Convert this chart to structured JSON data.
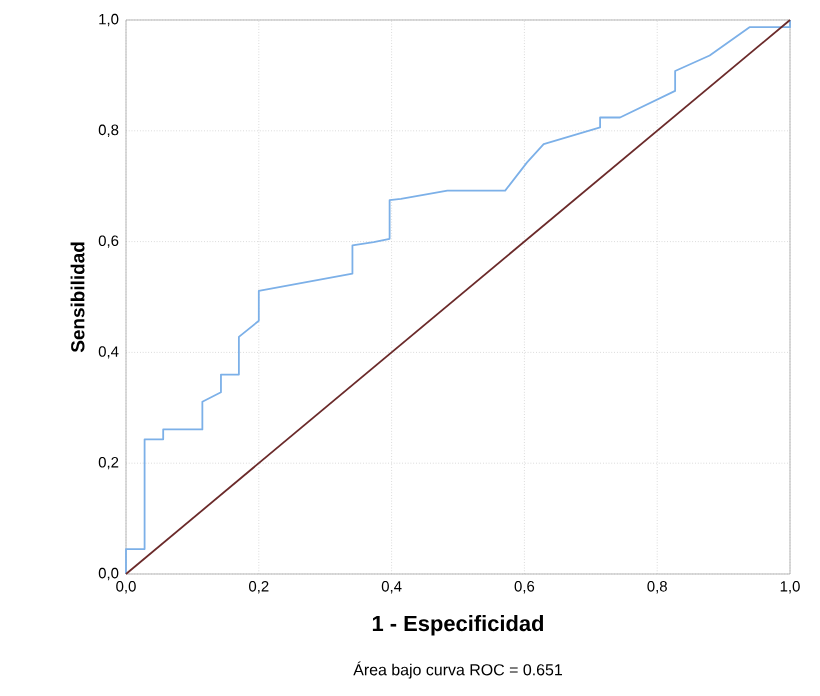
{
  "chart_data": {
    "type": "line",
    "xlabel": "1 - Especificidad",
    "ylabel": "Sensibilidad",
    "annotations": [
      "Área bajo curva ROC = 0.651"
    ],
    "xlim": [
      0,
      1
    ],
    "ylim": [
      0,
      1
    ],
    "xticks": [
      {
        "value": 0,
        "label": "0,0"
      },
      {
        "value": 0.2,
        "label": "0,2"
      },
      {
        "value": 0.4,
        "label": "0,4"
      },
      {
        "value": 0.6,
        "label": "0,6"
      },
      {
        "value": 0.8,
        "label": "0,8"
      },
      {
        "value": 1,
        "label": "1,0"
      }
    ],
    "yticks": [
      {
        "value": 0,
        "label": "0,0"
      },
      {
        "value": 0.2,
        "label": "0,2"
      },
      {
        "value": 0.4,
        "label": "0,4"
      },
      {
        "value": 0.6,
        "label": "0,6"
      },
      {
        "value": 0.8,
        "label": "0,8"
      },
      {
        "value": 1,
        "label": "1,0"
      }
    ],
    "grid": true,
    "series": [
      {
        "color": "#7cb0e8",
        "x": [
          0,
          0,
          0.028,
          0.028,
          0.056,
          0.056,
          0.115,
          0.115,
          0.143,
          0.143,
          0.17,
          0.17,
          0.2,
          0.2,
          0.341,
          0.341,
          0.373,
          0.397,
          0.397,
          0.414,
          0.484,
          0.571,
          0.604,
          0.629,
          0.714,
          0.714,
          0.744,
          0.827,
          0.827,
          0.879,
          0.939,
          1,
          1
        ],
        "values": [
          0,
          0.045,
          0.045,
          0.243,
          0.243,
          0.261,
          0.261,
          0.311,
          0.328,
          0.36,
          0.36,
          0.428,
          0.457,
          0.511,
          0.542,
          0.593,
          0.599,
          0.605,
          0.675,
          0.677,
          0.692,
          0.692,
          0.743,
          0.776,
          0.806,
          0.824,
          0.824,
          0.872,
          0.908,
          0.936,
          0.987,
          0.987,
          1
        ]
      },
      {
        "color": "#6b2a2a",
        "x": [
          0,
          1
        ],
        "values": [
          0,
          1
        ]
      }
    ]
  }
}
